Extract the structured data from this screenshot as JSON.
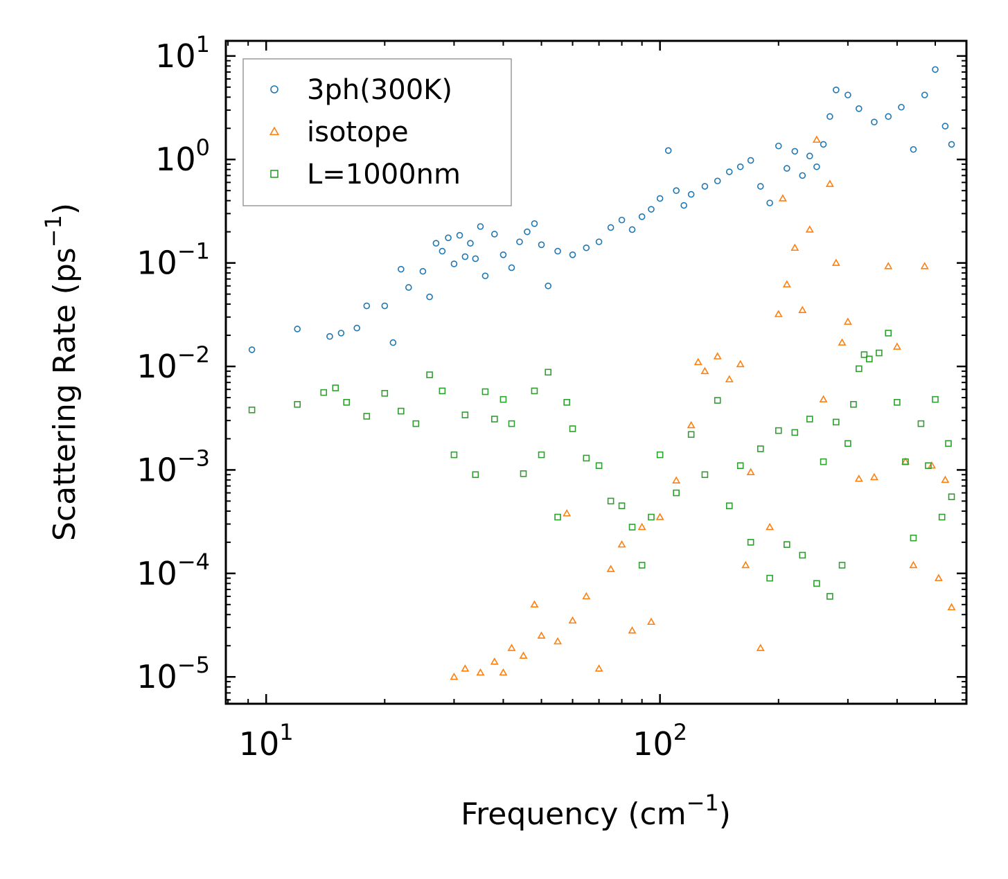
{
  "chart_data": {
    "type": "scatter",
    "xscale": "log",
    "yscale": "log",
    "xlim": [
      7.9,
      600
    ],
    "ylim": [
      5.5e-06,
      14
    ],
    "xlabel": "Frequency (cm",
    "xlabel_exp": "−1",
    "xlabel_tail": ")",
    "ylabel": "Scattering Rate (ps",
    "ylabel_exp": "−1",
    "ylabel_tail": ")",
    "legend_position": "top-left",
    "x_ticks": [
      {
        "value": 10,
        "base": "10",
        "exp": "1"
      },
      {
        "value": 100,
        "base": "10",
        "exp": "2"
      }
    ],
    "y_ticks": [
      {
        "value": 10,
        "base": "10",
        "exp": "1"
      },
      {
        "value": 1,
        "base": "10",
        "exp": "0"
      },
      {
        "value": 0.1,
        "base": "10",
        "exp": "−1"
      },
      {
        "value": 0.01,
        "base": "10",
        "exp": "−2"
      },
      {
        "value": 0.001,
        "base": "10",
        "exp": "−3"
      },
      {
        "value": 0.0001,
        "base": "10",
        "exp": "−4"
      },
      {
        "value": 1e-05,
        "base": "10",
        "exp": "−5"
      }
    ],
    "series": [
      {
        "name": "3ph(300K)",
        "marker": "circle",
        "color": "#1f77b4",
        "points": [
          [
            9.2,
            0.0145
          ],
          [
            12,
            0.023
          ],
          [
            14.5,
            0.0195
          ],
          [
            15.5,
            0.021
          ],
          [
            17,
            0.0235
          ],
          [
            18,
            0.0385
          ],
          [
            20,
            0.0385
          ],
          [
            21,
            0.017
          ],
          [
            22,
            0.087
          ],
          [
            23,
            0.058
          ],
          [
            25,
            0.083
          ],
          [
            26,
            0.047
          ],
          [
            27,
            0.155
          ],
          [
            28,
            0.13
          ],
          [
            29,
            0.175
          ],
          [
            30,
            0.098
          ],
          [
            31,
            0.185
          ],
          [
            32,
            0.115
          ],
          [
            33,
            0.155
          ],
          [
            34,
            0.11
          ],
          [
            35,
            0.225
          ],
          [
            36,
            0.075
          ],
          [
            38,
            0.19
          ],
          [
            40,
            0.12
          ],
          [
            42,
            0.09
          ],
          [
            44,
            0.16
          ],
          [
            46,
            0.2
          ],
          [
            48,
            0.24
          ],
          [
            50,
            0.15
          ],
          [
            52,
            0.06
          ],
          [
            55,
            0.13
          ],
          [
            60,
            0.12
          ],
          [
            65,
            0.14
          ],
          [
            70,
            0.16
          ],
          [
            75,
            0.22
          ],
          [
            80,
            0.26
          ],
          [
            85,
            0.21
          ],
          [
            90,
            0.28
          ],
          [
            95,
            0.33
          ],
          [
            100,
            0.42
          ],
          [
            105,
            1.22
          ],
          [
            110,
            0.5
          ],
          [
            115,
            0.36
          ],
          [
            120,
            0.46
          ],
          [
            130,
            0.55
          ],
          [
            140,
            0.62
          ],
          [
            150,
            0.76
          ],
          [
            160,
            0.85
          ],
          [
            170,
            0.98
          ],
          [
            180,
            0.55
          ],
          [
            190,
            0.38
          ],
          [
            200,
            1.35
          ],
          [
            210,
            0.82
          ],
          [
            220,
            1.2
          ],
          [
            230,
            0.7
          ],
          [
            240,
            1.08
          ],
          [
            250,
            0.85
          ],
          [
            260,
            1.4
          ],
          [
            270,
            2.6
          ],
          [
            280,
            4.7
          ],
          [
            300,
            4.2
          ],
          [
            320,
            3.1
          ],
          [
            350,
            2.3
          ],
          [
            380,
            2.6
          ],
          [
            410,
            3.2
          ],
          [
            440,
            1.25
          ],
          [
            470,
            4.2
          ],
          [
            500,
            7.4
          ],
          [
            530,
            2.1
          ],
          [
            550,
            1.4
          ]
        ]
      },
      {
        "name": "isotope",
        "marker": "triangle",
        "color": "#ff7f0e",
        "points": [
          [
            30,
            1e-05
          ],
          [
            32,
            1.2e-05
          ],
          [
            35,
            1.1e-05
          ],
          [
            38,
            1.4e-05
          ],
          [
            40,
            1.1e-05
          ],
          [
            42,
            1.9e-05
          ],
          [
            45,
            1.6e-05
          ],
          [
            48,
            5e-05
          ],
          [
            50,
            2.5e-05
          ],
          [
            55,
            2.2e-05
          ],
          [
            58,
            0.00038
          ],
          [
            60,
            3.5e-05
          ],
          [
            65,
            6e-05
          ],
          [
            70,
            1.2e-05
          ],
          [
            75,
            0.00011
          ],
          [
            80,
            0.00019
          ],
          [
            85,
            2.8e-05
          ],
          [
            90,
            0.00028
          ],
          [
            95,
            3.4e-05
          ],
          [
            100,
            0.00035
          ],
          [
            110,
            0.00079
          ],
          [
            120,
            0.0027
          ],
          [
            125,
            0.011
          ],
          [
            130,
            0.009
          ],
          [
            140,
            0.0125
          ],
          [
            150,
            0.0075
          ],
          [
            160,
            0.0105
          ],
          [
            165,
            0.00012
          ],
          [
            170,
            0.00095
          ],
          [
            180,
            1.9e-05
          ],
          [
            190,
            0.00028
          ],
          [
            200,
            0.032
          ],
          [
            205,
            0.42
          ],
          [
            210,
            0.062
          ],
          [
            220,
            0.14
          ],
          [
            230,
            0.035
          ],
          [
            240,
            0.21
          ],
          [
            250,
            1.55
          ],
          [
            260,
            0.0048
          ],
          [
            270,
            0.58
          ],
          [
            280,
            0.1
          ],
          [
            290,
            0.017
          ],
          [
            300,
            0.027
          ],
          [
            320,
            0.00082
          ],
          [
            350,
            0.00085
          ],
          [
            380,
            0.093
          ],
          [
            400,
            0.0155
          ],
          [
            420,
            0.0012
          ],
          [
            440,
            0.00012
          ],
          [
            470,
            0.093
          ],
          [
            490,
            0.0011
          ],
          [
            510,
            9e-05
          ],
          [
            530,
            0.0008
          ],
          [
            550,
            4.7e-05
          ]
        ]
      },
      {
        "name": "L=1000nm",
        "marker": "square",
        "color": "#2ca02c",
        "points": [
          [
            9.2,
            0.0038
          ],
          [
            12,
            0.0043
          ],
          [
            14,
            0.0056
          ],
          [
            15,
            0.0062
          ],
          [
            16,
            0.0045
          ],
          [
            18,
            0.0033
          ],
          [
            20,
            0.0055
          ],
          [
            22,
            0.0037
          ],
          [
            24,
            0.0028
          ],
          [
            26,
            0.0083
          ],
          [
            28,
            0.0058
          ],
          [
            30,
            0.0014
          ],
          [
            32,
            0.0034
          ],
          [
            34,
            0.0009
          ],
          [
            36,
            0.0057
          ],
          [
            38,
            0.0031
          ],
          [
            40,
            0.0048
          ],
          [
            42,
            0.0028
          ],
          [
            45,
            0.00092
          ],
          [
            48,
            0.0058
          ],
          [
            50,
            0.0014
          ],
          [
            52,
            0.0088
          ],
          [
            55,
            0.00035
          ],
          [
            58,
            0.0045
          ],
          [
            60,
            0.0025
          ],
          [
            65,
            0.0013
          ],
          [
            70,
            0.0011
          ],
          [
            75,
            0.0005
          ],
          [
            80,
            0.00045
          ],
          [
            85,
            0.00028
          ],
          [
            90,
            0.00012
          ],
          [
            95,
            0.00035
          ],
          [
            100,
            0.0014
          ],
          [
            110,
            0.0006
          ],
          [
            120,
            0.0022
          ],
          [
            130,
            0.0009
          ],
          [
            140,
            0.0047
          ],
          [
            150,
            0.00045
          ],
          [
            160,
            0.0011
          ],
          [
            170,
            0.0002
          ],
          [
            180,
            0.0016
          ],
          [
            190,
            9e-05
          ],
          [
            200,
            0.0024
          ],
          [
            210,
            0.00019
          ],
          [
            220,
            0.0023
          ],
          [
            230,
            0.00015
          ],
          [
            240,
            0.0031
          ],
          [
            250,
            8e-05
          ],
          [
            260,
            0.0012
          ],
          [
            270,
            6e-05
          ],
          [
            280,
            0.0029
          ],
          [
            290,
            0.00012
          ],
          [
            300,
            0.0018
          ],
          [
            310,
            0.0043
          ],
          [
            320,
            0.0095
          ],
          [
            330,
            0.013
          ],
          [
            340,
            0.0118
          ],
          [
            360,
            0.0135
          ],
          [
            380,
            0.021
          ],
          [
            400,
            0.0045
          ],
          [
            420,
            0.0012
          ],
          [
            440,
            0.00022
          ],
          [
            460,
            0.0028
          ],
          [
            480,
            0.0011
          ],
          [
            500,
            0.0048
          ],
          [
            520,
            0.00035
          ],
          [
            540,
            0.0018
          ],
          [
            550,
            0.00055
          ]
        ]
      }
    ]
  }
}
